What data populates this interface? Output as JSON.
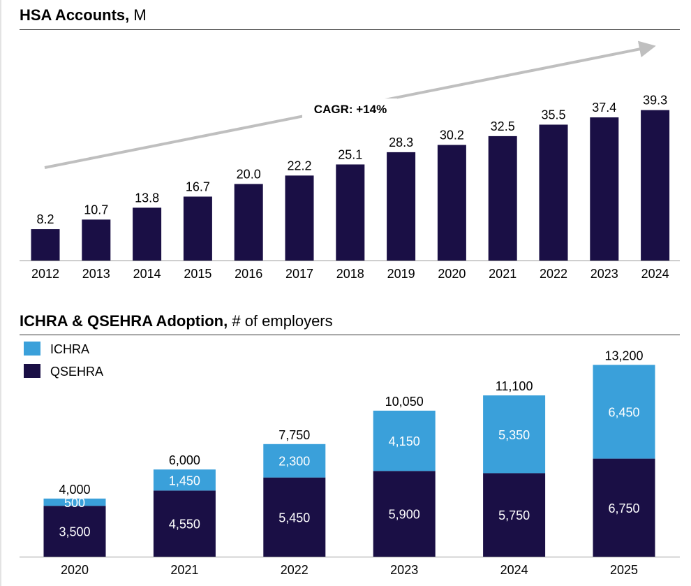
{
  "chart_data": [
    {
      "type": "bar",
      "title": "HSA Accounts",
      "unit": "M",
      "categories": [
        "2012",
        "2013",
        "2014",
        "2015",
        "2016",
        "2017",
        "2018",
        "2019",
        "2020",
        "2021",
        "2022",
        "2023",
        "2024"
      ],
      "values": [
        8.2,
        10.7,
        13.8,
        16.7,
        20.0,
        22.2,
        25.1,
        28.3,
        30.2,
        32.5,
        35.5,
        37.4,
        39.3
      ],
      "value_labels": [
        "8.2",
        "10.7",
        "13.8",
        "16.7",
        "20.0",
        "22.2",
        "25.1",
        "28.3",
        "30.2",
        "32.5",
        "35.5",
        "37.4",
        "39.3"
      ],
      "annotation": "CAGR: +14%",
      "color": "#1a0f45",
      "ylim": [
        0,
        40
      ]
    },
    {
      "type": "bar",
      "stacked": true,
      "title": "ICHRA & QSEHRA Adoption",
      "unit": "# of employers",
      "categories": [
        "2020",
        "2021",
        "2022",
        "2023",
        "2024",
        "2025"
      ],
      "series": [
        {
          "name": "QSEHRA",
          "color": "#1a0f45",
          "values": [
            3500,
            4550,
            5450,
            5900,
            5750,
            6750
          ],
          "labels": [
            "3,500",
            "4,550",
            "5,450",
            "5,900",
            "5,750",
            "6,750"
          ]
        },
        {
          "name": "ICHRA",
          "color": "#3aa0da",
          "values": [
            500,
            1450,
            2300,
            4150,
            5350,
            6450
          ],
          "labels": [
            "500",
            "1,450",
            "2,300",
            "4,150",
            "5,350",
            "6,450"
          ]
        }
      ],
      "totals": [
        "4,000",
        "6,000",
        "7,750",
        "10,050",
        "11,100",
        "13,200"
      ],
      "legend": [
        "ICHRA",
        "QSEHRA"
      ],
      "legend_position": "top-left",
      "ylim": [
        0,
        13200
      ]
    }
  ]
}
